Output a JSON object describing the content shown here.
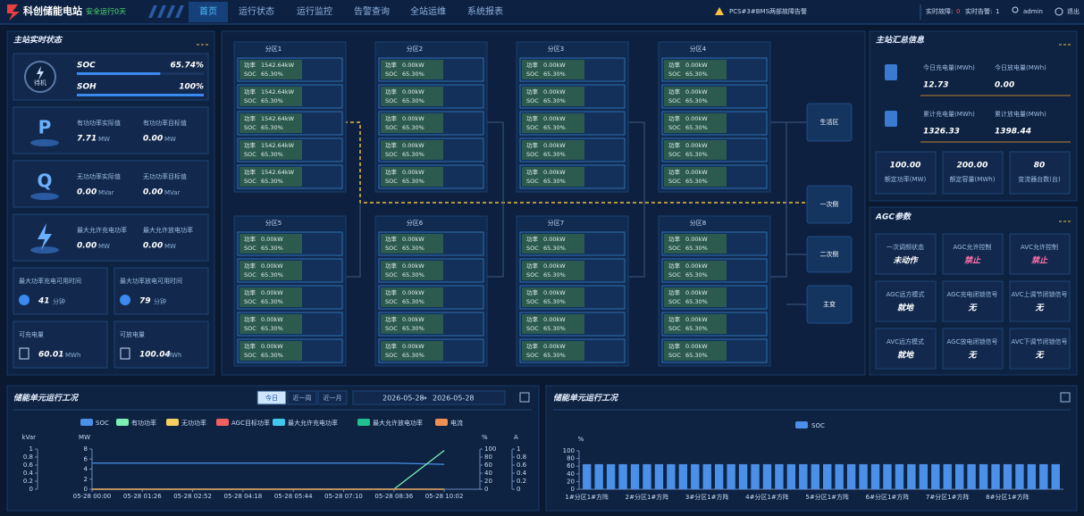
{
  "header": {
    "title": "科创储能电站",
    "safe": "安全运行0天",
    "nav": [
      "首页",
      "运行状态",
      "运行监控",
      "告警查询",
      "全站运维",
      "系统报表"
    ],
    "alarm": "PCS#3#BMS两部故障告警",
    "fault_label": "实时故障:",
    "fault_value": "0",
    "warn_label": "实时告警:",
    "warn_value": "1",
    "user": "admin",
    "logout": "退出"
  },
  "station_status": {
    "title": "主站实时状态",
    "state": "待机",
    "soc_label": "SOC",
    "soc": "65.74%",
    "soh_label": "SOH",
    "soh": "100%",
    "power_cards": [
      {
        "icon": "P",
        "items": [
          {
            "label": "有功功率实际值",
            "value": "7.71",
            "unit": "MW"
          },
          {
            "label": "有功功率目标值",
            "value": "0.00",
            "unit": "MW"
          }
        ]
      },
      {
        "icon": "Q",
        "items": [
          {
            "label": "无功功率实际值",
            "value": "0.00",
            "unit": "MVar"
          },
          {
            "label": "无功功率目标值",
            "value": "0.00",
            "unit": "MVar"
          }
        ]
      },
      {
        "items": [
          {
            "label": "最大允许充电功率",
            "value": "0.00",
            "unit": "MW"
          },
          {
            "label": "最大允许放电功率",
            "value": "0.00",
            "unit": "MW"
          }
        ]
      }
    ],
    "time_cards": [
      {
        "label": "最大功率充电可用时间",
        "value": "41",
        "unit": "分钟"
      },
      {
        "label": "最大功率放电可用时间",
        "value": "79",
        "unit": "分钟"
      }
    ],
    "energy_cards": [
      {
        "label": "可充电量",
        "value": "60.01",
        "unit": "MWh"
      },
      {
        "label": "可放电量",
        "value": "100.04",
        "unit": "MWh"
      }
    ]
  },
  "zones": [
    {
      "name": "分区1",
      "units": [
        {
          "p_label": "功率",
          "power": "1542.64kW",
          "s_label": "SOC",
          "soc": "65.30%"
        },
        {
          "p_label": "功率",
          "power": "1542.64kW",
          "s_label": "SOC",
          "soc": "65.30%"
        },
        {
          "p_label": "功率",
          "power": "1542.64kW",
          "s_label": "SOC",
          "soc": "65.30%"
        },
        {
          "p_label": "功率",
          "power": "1542.64kW",
          "s_label": "SOC",
          "soc": "65.30%"
        },
        {
          "p_label": "功率",
          "power": "1542.64kW",
          "s_label": "SOC",
          "soc": "65.30%"
        }
      ]
    },
    {
      "name": "分区2",
      "units": [
        {
          "p_label": "功率",
          "power": "0.00kW",
          "s_label": "SOC",
          "soc": "65.30%"
        },
        {
          "p_label": "功率",
          "power": "0.00kW",
          "s_label": "SOC",
          "soc": "65.30%"
        },
        {
          "p_label": "功率",
          "power": "0.00kW",
          "s_label": "SOC",
          "soc": "65.30%"
        },
        {
          "p_label": "功率",
          "power": "0.00kW",
          "s_label": "SOC",
          "soc": "65.30%"
        },
        {
          "p_label": "功率",
          "power": "0.00kW",
          "s_label": "SOC",
          "soc": "65.30%"
        }
      ]
    },
    {
      "name": "分区3",
      "units": [
        {
          "p_label": "功率",
          "power": "0.00kW",
          "s_label": "SOC",
          "soc": "65.30%"
        },
        {
          "p_label": "功率",
          "power": "0.00kW",
          "s_label": "SOC",
          "soc": "65.30%"
        },
        {
          "p_label": "功率",
          "power": "0.00kW",
          "s_label": "SOC",
          "soc": "65.30%"
        },
        {
          "p_label": "功率",
          "power": "0.00kW",
          "s_label": "SOC",
          "soc": "65.30%"
        },
        {
          "p_label": "功率",
          "power": "0.00kW",
          "s_label": "SOC",
          "soc": "65.30%"
        }
      ]
    },
    {
      "name": "分区4",
      "units": [
        {
          "p_label": "功率",
          "power": "0.00kW",
          "s_label": "SOC",
          "soc": "65.30%"
        },
        {
          "p_label": "功率",
          "power": "0.00kW",
          "s_label": "SOC",
          "soc": "65.30%"
        },
        {
          "p_label": "功率",
          "power": "0.00kW",
          "s_label": "SOC",
          "soc": "65.30%"
        },
        {
          "p_label": "功率",
          "power": "0.00kW",
          "s_label": "SOC",
          "soc": "65.30%"
        },
        {
          "p_label": "功率",
          "power": "0.00kW",
          "s_label": "SOC",
          "soc": "65.30%"
        }
      ]
    },
    {
      "name": "分区5",
      "units": [
        {
          "p_label": "功率",
          "power": "0.00kW",
          "s_label": "SOC",
          "soc": "65.30%"
        },
        {
          "p_label": "功率",
          "power": "0.00kW",
          "s_label": "SOC",
          "soc": "65.30%"
        },
        {
          "p_label": "功率",
          "power": "0.00kW",
          "s_label": "SOC",
          "soc": "65.30%"
        },
        {
          "p_label": "功率",
          "power": "0.00kW",
          "s_label": "SOC",
          "soc": "65.30%"
        },
        {
          "p_label": "功率",
          "power": "0.00kW",
          "s_label": "SOC",
          "soc": "65.30%"
        }
      ]
    },
    {
      "name": "分区6",
      "units": [
        {
          "p_label": "功率",
          "power": "0.00kW",
          "s_label": "SOC",
          "soc": "65.30%"
        },
        {
          "p_label": "功率",
          "power": "0.00kW",
          "s_label": "SOC",
          "soc": "65.30%"
        },
        {
          "p_label": "功率",
          "power": "0.00kW",
          "s_label": "SOC",
          "soc": "65.30%"
        },
        {
          "p_label": "功率",
          "power": "0.00kW",
          "s_label": "SOC",
          "soc": "65.30%"
        },
        {
          "p_label": "功率",
          "power": "0.00kW",
          "s_label": "SOC",
          "soc": "65.30%"
        }
      ]
    },
    {
      "name": "分区7",
      "units": [
        {
          "p_label": "功率",
          "power": "0.00kW",
          "s_label": "SOC",
          "soc": "65.30%"
        },
        {
          "p_label": "功率",
          "power": "0.00kW",
          "s_label": "SOC",
          "soc": "65.30%"
        },
        {
          "p_label": "功率",
          "power": "0.00kW",
          "s_label": "SOC",
          "soc": "65.30%"
        },
        {
          "p_label": "功率",
          "power": "0.00kW",
          "s_label": "SOC",
          "soc": "65.30%"
        },
        {
          "p_label": "功率",
          "power": "0.00kW",
          "s_label": "SOC",
          "soc": "65.30%"
        }
      ]
    },
    {
      "name": "分区8",
      "units": [
        {
          "p_label": "功率",
          "power": "0.00kW",
          "s_label": "SOC",
          "soc": "65.30%"
        },
        {
          "p_label": "功率",
          "power": "0.00kW",
          "s_label": "SOC",
          "soc": "65.30%"
        },
        {
          "p_label": "功率",
          "power": "0.00kW",
          "s_label": "SOC",
          "soc": "65.30%"
        },
        {
          "p_label": "功率",
          "power": "0.00kW",
          "s_label": "SOC",
          "soc": "65.30%"
        },
        {
          "p_label": "功率",
          "power": "0.00kW",
          "s_label": "SOC",
          "soc": "65.30%"
        }
      ]
    }
  ],
  "side_buttons": [
    "生活区",
    "一次侧",
    "二次侧",
    "主变"
  ],
  "summary": {
    "title": "主站汇总信息",
    "items": [
      {
        "label": "今日充电量(MWh)",
        "value": "12.73"
      },
      {
        "label": "今日放电量(MWh)",
        "value": "0.00"
      },
      {
        "label": "累计充电量(MWh)",
        "value": "1326.33"
      },
      {
        "label": "累计放电量(MWh)",
        "value": "1398.44"
      }
    ],
    "cards": [
      {
        "value": "100.00",
        "label": "额定功率(MW)"
      },
      {
        "value": "200.00",
        "label": "额定容量(MWh)"
      },
      {
        "value": "80",
        "label": "变流器台数(台)"
      }
    ]
  },
  "agc": {
    "title": "AGC参数",
    "cells": [
      {
        "label": "一次调频状态",
        "value": "未动作"
      },
      {
        "label": "AGC允许控制",
        "value": "禁止"
      },
      {
        "label": "AVC允许控制",
        "value": "禁止"
      },
      {
        "label": "AGC远方模式",
        "value": "就地"
      },
      {
        "label": "AGC充电闭锁信号",
        "value": "无"
      },
      {
        "label": "AVC上调节闭锁信号",
        "value": "无"
      },
      {
        "label": "AVC远方模式",
        "value": "就地"
      },
      {
        "label": "AGC放电闭锁信号",
        "value": "无"
      },
      {
        "label": "AVC下调节闭锁信号",
        "value": "无"
      }
    ]
  },
  "line_chart": {
    "type": "line",
    "title": "储能单元运行工况",
    "range_buttons": [
      "今日",
      "近一周",
      "近一月"
    ],
    "date_start": "2026-05-28",
    "date_sep": "→",
    "date_end": "2026-05-28",
    "x": [
      "05-28 00:00",
      "05-28 01:26",
      "05-28 02:52",
      "05-28 04:18",
      "05-28 05:44",
      "05-28 07:10",
      "05-28 08:36",
      "05-28 10:02"
    ],
    "axes": [
      {
        "label": "kVar",
        "ylim": [
          0,
          1
        ],
        "yticks": [
          0,
          0.2,
          0.4,
          0.6,
          0.8,
          1
        ]
      },
      {
        "label": "MW",
        "ylim": [
          0,
          8
        ],
        "yticks": [
          0,
          2,
          4,
          6,
          8
        ]
      },
      {
        "label": "%",
        "ylim": [
          0,
          100
        ],
        "yticks": [
          0,
          20,
          40,
          60,
          80,
          100
        ]
      },
      {
        "label": "A",
        "ylim": [
          0,
          1
        ],
        "yticks": [
          0,
          0.2,
          0.4,
          0.6,
          0.8,
          1
        ]
      }
    ],
    "series": [
      {
        "name": "SOC",
        "color": "#4a8fe8",
        "axis": "%",
        "values": [
          65,
          65,
          65,
          65,
          65,
          65,
          65,
          62
        ]
      },
      {
        "name": "有功功率",
        "color": "#7cf0b0",
        "axis": "MW",
        "values": [
          0,
          0,
          0,
          0,
          0,
          0,
          0,
          7.71
        ]
      },
      {
        "name": "无功功率",
        "color": "#f5d060",
        "axis": "kVar",
        "values": [
          0,
          0,
          0,
          0,
          0,
          0,
          0,
          0
        ]
      },
      {
        "name": "AGC目标功率",
        "color": "#f06060",
        "axis": "MW",
        "values": [
          0,
          0,
          0,
          0,
          0,
          0,
          0,
          0
        ]
      },
      {
        "name": "最大允许充电功率",
        "color": "#40c8f0",
        "axis": "MW",
        "values": [
          0,
          0,
          0,
          0,
          0,
          0,
          0,
          0
        ]
      },
      {
        "name": "最大允许放电功率",
        "color": "#20c090",
        "axis": "MW",
        "values": [
          0,
          0,
          0,
          0,
          0,
          0,
          0,
          0
        ]
      },
      {
        "name": "电流",
        "color": "#f09050",
        "axis": "A",
        "values": [
          0,
          0,
          0,
          0,
          0,
          0,
          0,
          0
        ]
      }
    ]
  },
  "bar_chart": {
    "type": "bar",
    "title": "储能单元运行工况",
    "series_name": "SOC",
    "color": "#4a8fe8",
    "y_label": "%",
    "ylim": [
      0,
      100
    ],
    "yticks": [
      0,
      20,
      40,
      60,
      80,
      100
    ],
    "categories": [
      "1#分区1#方阵",
      null,
      null,
      null,
      null,
      "2#分区1#方阵",
      null,
      null,
      null,
      null,
      "3#分区1#方阵",
      null,
      null,
      null,
      null,
      "4#分区1#方阵",
      null,
      null,
      null,
      null,
      "5#分区1#方阵",
      null,
      null,
      null,
      null,
      "6#分区1#方阵",
      null,
      null,
      null,
      null,
      "7#分区1#方阵",
      null,
      null,
      null,
      null,
      "8#分区1#方阵",
      null,
      null,
      null,
      null
    ],
    "values": [
      65.3,
      65.3,
      65.3,
      65.3,
      65.3,
      65.3,
      65.3,
      65.3,
      65.3,
      65.3,
      65.3,
      65.3,
      65.3,
      65.3,
      65.3,
      65.3,
      65.3,
      65.3,
      65.3,
      65.3,
      65.3,
      65.3,
      65.3,
      65.3,
      65.3,
      65.3,
      65.3,
      65.3,
      65.3,
      65.3,
      65.3,
      65.3,
      65.3,
      65.3,
      65.3,
      65.3,
      65.3,
      65.3,
      65.3,
      65.3
    ]
  }
}
